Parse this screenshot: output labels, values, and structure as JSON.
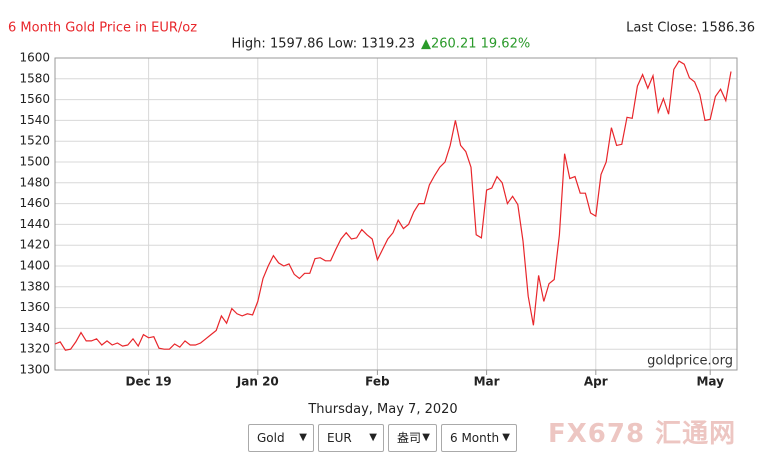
{
  "chart_data": {
    "type": "line",
    "title": "6 Month Gold Price in EUR/oz",
    "last_close": "Last Close: 1586.36",
    "stats": "High: 1597.86 Low: 1319.23",
    "change": "▲260.21 19.62%",
    "watermark": "goldprice.org",
    "date": "Thursday, May 7, 2020",
    "controls": [
      "Gold",
      "EUR",
      "盎司",
      "6 Month"
    ],
    "logo": "FX678 汇通网",
    "color": "#e8262b",
    "grid": true,
    "ylim": [
      1300,
      1600
    ],
    "yticks": [
      1300,
      1320,
      1340,
      1360,
      1380,
      1400,
      1420,
      1440,
      1460,
      1480,
      1500,
      1520,
      1540,
      1560,
      1580,
      1600
    ],
    "categories": [
      null,
      null,
      null,
      null,
      null,
      null,
      null,
      null,
      null,
      null,
      null,
      null,
      null,
      null,
      null,
      null,
      null,
      null,
      "Dec 19",
      null,
      null,
      null,
      null,
      null,
      null,
      null,
      null,
      null,
      null,
      null,
      null,
      null,
      null,
      null,
      null,
      null,
      null,
      null,
      null,
      "Jan 20",
      null,
      null,
      null,
      null,
      null,
      null,
      null,
      null,
      null,
      null,
      null,
      null,
      null,
      null,
      null,
      null,
      null,
      null,
      null,
      null,
      null,
      null,
      "Feb",
      null,
      null,
      null,
      null,
      null,
      null,
      null,
      null,
      null,
      null,
      null,
      null,
      null,
      null,
      null,
      null,
      null,
      null,
      null,
      null,
      "Mar",
      null,
      null,
      null,
      null,
      null,
      null,
      null,
      null,
      null,
      null,
      null,
      null,
      null,
      null,
      null,
      null,
      null,
      null,
      null,
      null,
      "Apr",
      null,
      null,
      null,
      null,
      null,
      null,
      null,
      null,
      null,
      null,
      null,
      null,
      null,
      null,
      null,
      null,
      null,
      null,
      null,
      null,
      null,
      "May",
      null,
      null,
      null,
      null
    ],
    "values": [
      1325,
      1327,
      1319,
      1320,
      1327,
      1336,
      1328,
      1328,
      1330,
      1324,
      1328,
      1324,
      1326,
      1323,
      1324,
      1330,
      1323,
      1334,
      1331,
      1332,
      1321,
      1320,
      1320,
      1325,
      1322,
      1328,
      1324,
      1324,
      1326,
      1330,
      1334,
      1338,
      1352,
      1345,
      1359,
      1354,
      1352,
      1354,
      1353,
      1366,
      1388,
      1400,
      1410,
      1403,
      1400,
      1402,
      1392,
      1388,
      1393,
      1393,
      1407,
      1408,
      1405,
      1405,
      1416,
      1426,
      1432,
      1426,
      1427,
      1435,
      1430,
      1426,
      1406,
      1416,
      1426,
      1432,
      1444,
      1436,
      1440,
      1452,
      1460,
      1460,
      1478,
      1487,
      1495,
      1500,
      1516,
      1540,
      1516,
      1510,
      1495,
      1430,
      1427,
      1473,
      1475,
      1486,
      1480,
      1460,
      1467,
      1459,
      1424,
      1371,
      1343,
      1391,
      1366,
      1383,
      1387,
      1430,
      1508,
      1484,
      1486,
      1470,
      1470,
      1451,
      1448,
      1488,
      1500,
      1533,
      1516,
      1517,
      1543,
      1542,
      1573,
      1584,
      1571,
      1583,
      1548,
      1561,
      1546,
      1589,
      1597,
      1594,
      1581,
      1577,
      1565,
      1540,
      1541,
      1563,
      1570,
      1559,
      1587
    ]
  }
}
